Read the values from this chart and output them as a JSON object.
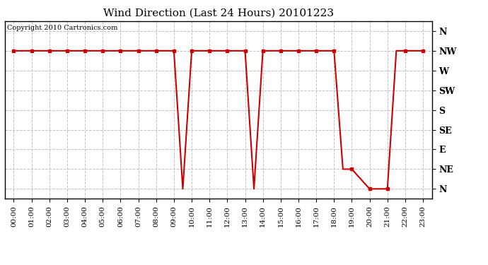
{
  "title": "Wind Direction (Last 24 Hours) 20101223",
  "copyright_text": "Copyright 2010 Cartronics.com",
  "line_color": "#cc0000",
  "marker_color": "#cc0000",
  "background_color": "#ffffff",
  "plot_bg_color": "#ffffff",
  "grid_color": "#bbbbbb",
  "ytick_labels": [
    "N",
    "NW",
    "W",
    "SW",
    "S",
    "SE",
    "E",
    "NE",
    "N"
  ],
  "ytick_values": [
    0,
    7,
    6,
    5,
    4,
    3,
    2,
    1,
    8
  ],
  "x_hours": [
    0,
    1,
    2,
    3,
    4,
    5,
    6,
    7,
    8,
    9,
    10,
    11,
    12,
    13,
    14,
    15,
    16,
    17,
    18,
    19,
    20,
    21,
    22,
    23
  ],
  "x_labels": [
    "00:00",
    "01:00",
    "02:00",
    "03:00",
    "04:00",
    "05:00",
    "06:00",
    "07:00",
    "08:00",
    "09:00",
    "10:00",
    "11:00",
    "12:00",
    "13:00",
    "14:00",
    "15:00",
    "16:00",
    "17:00",
    "18:00",
    "19:00",
    "20:00",
    "21:00",
    "22:00",
    "23:00"
  ],
  "x_data": [
    0,
    1,
    2,
    3,
    4,
    5,
    6,
    7,
    8,
    9,
    9.5,
    10,
    11,
    12,
    13,
    13.5,
    14,
    15,
    16,
    17,
    18,
    18.5,
    19,
    20,
    21,
    21.5,
    22,
    23
  ],
  "y_data": [
    7,
    7,
    7,
    7,
    7,
    7,
    7,
    7,
    7,
    7,
    0,
    7,
    7,
    7,
    7,
    0,
    7,
    7,
    7,
    7,
    7,
    1,
    1,
    0,
    0,
    7,
    7,
    7
  ],
  "marker_x": [
    0,
    1,
    2,
    3,
    4,
    5,
    6,
    7,
    8,
    9,
    10,
    11,
    12,
    13,
    14,
    15,
    16,
    17,
    18,
    19,
    20,
    21,
    22,
    23
  ],
  "marker_y": [
    7,
    7,
    7,
    7,
    7,
    7,
    7,
    7,
    7,
    7,
    7,
    7,
    7,
    7,
    7,
    7,
    7,
    7,
    7,
    1,
    0,
    0,
    7,
    7
  ]
}
